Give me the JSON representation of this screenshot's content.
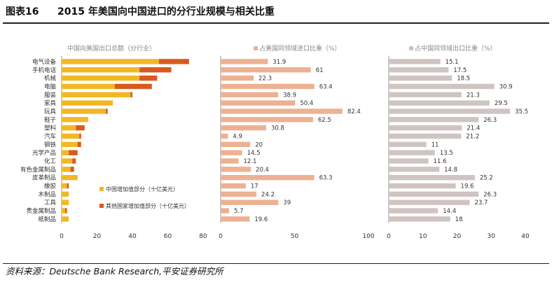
{
  "figure": {
    "label": "图表16",
    "title": "2015 年美国向中国进口的分行业规模与相关比重",
    "source": "资料来源：Deutsche Bank Research,平安证券研究所"
  },
  "colors": {
    "china_va": "#f2b824",
    "other_va": "#d85a1c",
    "import_share": "#edb192",
    "export_share": "#cfc4c2",
    "axis": "#999999",
    "grid": "#dddddd",
    "text": "#333333"
  },
  "chart_data": [
    {
      "type": "bar",
      "orientation": "horizontal",
      "stacked": true,
      "title": "中国向美国出口总额（分行业）",
      "categories": [
        "电气设备",
        "手机电话",
        "机械",
        "电脑",
        "服装",
        "家具",
        "玩具",
        "鞋子",
        "塑料",
        "汽车",
        "钢铁",
        "光学产品",
        "化工",
        "有色金属制品",
        "皮革制品",
        "橡胶",
        "木制品",
        "工具",
        "贵金属制品",
        "纸制品"
      ],
      "series": [
        {
          "name": "中国增加值部分（十亿美元）",
          "values": [
            55,
            44,
            44,
            30,
            39,
            29,
            25,
            15,
            8,
            10,
            9,
            4,
            6,
            5,
            9,
            3,
            4,
            4,
            2,
            4
          ]
        },
        {
          "name": "其他国家增加值部分（十亿美元）",
          "values": [
            17,
            18,
            10,
            21,
            1,
            0,
            1,
            0,
            5,
            1,
            2,
            5,
            2,
            2,
            0,
            1,
            0,
            0,
            1,
            0
          ]
        }
      ],
      "xticks": [
        "0",
        "20",
        "40",
        "60",
        "80"
      ],
      "xlim": [
        0,
        80
      ],
      "legend_position": "bottom-right"
    },
    {
      "type": "bar",
      "orientation": "horizontal",
      "title": "占美国同领域进口比重（%）",
      "categories": [
        "电气设备",
        "手机电话",
        "机械",
        "电脑",
        "服装",
        "家具",
        "玩具",
        "鞋子",
        "塑料",
        "汽车",
        "钢铁",
        "光学产品",
        "化工",
        "有色金属制品",
        "皮革制品",
        "橡胶",
        "木制品",
        "工具",
        "贵金属制品",
        "纸制品"
      ],
      "values": [
        31.9,
        61,
        22.3,
        63.4,
        38.9,
        50.4,
        82.4,
        62.5,
        30.8,
        4.9,
        20,
        14.5,
        12.1,
        20.4,
        63.3,
        17,
        24.2,
        39,
        5.7,
        19.6
      ],
      "labels": [
        "31.9",
        "61",
        "22.3",
        "63.4",
        "38.9",
        "50.4",
        "82.4",
        "62.5",
        "30.8",
        "4.9",
        "20",
        "14.5",
        "12.1",
        "20.4",
        "63.3",
        "17",
        "24.2",
        "39",
        "5.7",
        "19.6"
      ],
      "xticks": [
        "0",
        "50",
        "100"
      ],
      "xlim": [
        0,
        100
      ]
    },
    {
      "type": "bar",
      "orientation": "horizontal",
      "title": "占中国同领域出口比重（%）",
      "categories": [
        "电气设备",
        "手机电话",
        "机械",
        "电脑",
        "服装",
        "家具",
        "玩具",
        "鞋子",
        "塑料",
        "汽车",
        "钢铁",
        "光学产品",
        "化工",
        "有色金属制品",
        "皮革制品",
        "橡胶",
        "木制品",
        "工具",
        "贵金属制品",
        "纸制品"
      ],
      "values": [
        15.1,
        17.5,
        18.5,
        30.9,
        21.3,
        29.5,
        35.5,
        26.3,
        21.4,
        21.2,
        11,
        13.5,
        11.6,
        14.8,
        25.2,
        19.6,
        26.3,
        23.7,
        14.4,
        18
      ],
      "labels": [
        "15.1",
        "17.5",
        "18.5",
        "30.9",
        "21.3",
        "29.5",
        "35.5",
        "26.3",
        "21.4",
        "21.2",
        "11",
        "13.5",
        "11.6",
        "14.8",
        "25.2",
        "19.6",
        "26.3",
        "23.7",
        "14.4",
        "18"
      ],
      "xticks": [
        "0",
        "10",
        "20",
        "30",
        "40"
      ],
      "xlim": [
        0,
        40
      ]
    }
  ]
}
